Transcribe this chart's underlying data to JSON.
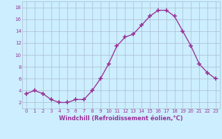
{
  "x": [
    0,
    1,
    2,
    3,
    4,
    5,
    6,
    7,
    8,
    9,
    10,
    11,
    12,
    13,
    14,
    15,
    16,
    17,
    18,
    19,
    20,
    21,
    22,
    23
  ],
  "y": [
    3.5,
    4.0,
    3.5,
    2.5,
    2.0,
    2.0,
    2.5,
    2.5,
    4.0,
    6.0,
    8.5,
    11.5,
    13.0,
    13.5,
    15.0,
    16.5,
    17.5,
    17.5,
    16.5,
    14.0,
    11.5,
    8.5,
    7.0,
    6.0
  ],
  "line_color": "#993399",
  "marker": "+",
  "markersize": 4,
  "markeredgewidth": 1.2,
  "linewidth": 1.0,
  "bg_color": "#cceeff",
  "grid_color": "#aabbcc",
  "xlabel": "Windchill (Refroidissement éolien,°C)",
  "xlabel_color": "#993399",
  "xlim": [
    -0.5,
    23.5
  ],
  "ylim": [
    1,
    19
  ],
  "yticks": [
    2,
    4,
    6,
    8,
    10,
    12,
    14,
    16,
    18
  ],
  "xticks": [
    0,
    1,
    2,
    3,
    4,
    5,
    6,
    7,
    8,
    9,
    10,
    11,
    12,
    13,
    14,
    15,
    16,
    17,
    18,
    19,
    20,
    21,
    22,
    23
  ],
  "tick_color": "#993399",
  "tick_fontsize": 5.0,
  "xlabel_fontsize": 6.0
}
